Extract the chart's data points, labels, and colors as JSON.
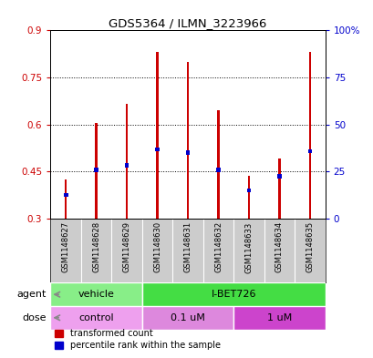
{
  "title": "GDS5364 / ILMN_3223966",
  "samples": [
    "GSM1148627",
    "GSM1148628",
    "GSM1148629",
    "GSM1148630",
    "GSM1148631",
    "GSM1148632",
    "GSM1148633",
    "GSM1148634",
    "GSM1148635"
  ],
  "transformed_count": [
    0.425,
    0.605,
    0.665,
    0.83,
    0.8,
    0.645,
    0.435,
    0.49,
    0.83
  ],
  "percentile_rank": [
    0.375,
    0.455,
    0.47,
    0.52,
    0.51,
    0.455,
    0.39,
    0.435,
    0.515
  ],
  "bar_bottom": 0.3,
  "ylim": [
    0.3,
    0.9
  ],
  "yticks": [
    0.3,
    0.45,
    0.6,
    0.75,
    0.9
  ],
  "right_yticks": [
    0,
    25,
    50,
    75,
    100
  ],
  "right_ytick_labels": [
    "0",
    "25",
    "50",
    "75",
    "100%"
  ],
  "bar_color": "#cc0000",
  "percentile_color": "#0000cc",
  "bar_width": 0.08,
  "agent_groups": [
    {
      "label": "vehicle",
      "start": 0,
      "end": 3,
      "color": "#88ee88"
    },
    {
      "label": "I-BET726",
      "start": 3,
      "end": 9,
      "color": "#44dd44"
    }
  ],
  "dose_groups": [
    {
      "label": "control",
      "start": 0,
      "end": 3,
      "color": "#eea0ee"
    },
    {
      "label": "0.1 uM",
      "start": 3,
      "end": 6,
      "color": "#dd88dd"
    },
    {
      "label": "1 uM",
      "start": 6,
      "end": 9,
      "color": "#cc44cc"
    }
  ],
  "legend_items": [
    {
      "label": "transformed count",
      "color": "#cc0000"
    },
    {
      "label": "percentile rank within the sample",
      "color": "#0000cc"
    }
  ],
  "left_yaxis_color": "#cc0000",
  "right_yaxis_color": "#0000cc",
  "background_color": "#ffffff",
  "tick_area_bg": "#cccccc"
}
